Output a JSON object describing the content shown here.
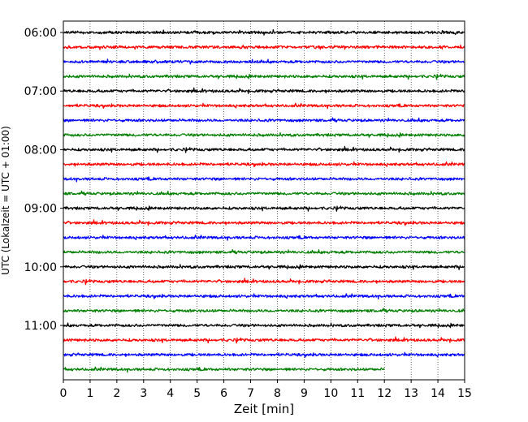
{
  "chart_data": {
    "type": "line",
    "title": "",
    "xlabel": "Zeit  [min]",
    "ylabel": "UTC (Lokalzeit = UTC + 01:00)",
    "xlim": [
      0,
      15
    ],
    "x_ticks": [
      "0",
      "1",
      "2",
      "3",
      "4",
      "5",
      "6",
      "7",
      "8",
      "9",
      "10",
      "11",
      "12",
      "13",
      "14",
      "15"
    ],
    "y_ticks": [
      "06:00",
      "07:00",
      "08:00",
      "09:00",
      "10:00",
      "11:00"
    ],
    "grid": "vertical dotted lines at each minute",
    "legend": "none",
    "trace_interval_min": 15,
    "trace_colors": [
      "#000000",
      "#ff0000",
      "#0000ff",
      "#007f00"
    ],
    "series": [
      {
        "start": "06:00",
        "color": "#000000",
        "end_minute": 15
      },
      {
        "start": "06:15",
        "color": "#ff0000",
        "end_minute": 15
      },
      {
        "start": "06:30",
        "color": "#0000ff",
        "end_minute": 15
      },
      {
        "start": "06:45",
        "color": "#007f00",
        "end_minute": 15
      },
      {
        "start": "07:00",
        "color": "#000000",
        "end_minute": 15
      },
      {
        "start": "07:15",
        "color": "#ff0000",
        "end_minute": 15
      },
      {
        "start": "07:30",
        "color": "#0000ff",
        "end_minute": 15
      },
      {
        "start": "07:45",
        "color": "#007f00",
        "end_minute": 15
      },
      {
        "start": "08:00",
        "color": "#000000",
        "end_minute": 15
      },
      {
        "start": "08:15",
        "color": "#ff0000",
        "end_minute": 15
      },
      {
        "start": "08:30",
        "color": "#0000ff",
        "end_minute": 15
      },
      {
        "start": "08:45",
        "color": "#007f00",
        "end_minute": 15
      },
      {
        "start": "09:00",
        "color": "#000000",
        "end_minute": 15
      },
      {
        "start": "09:15",
        "color": "#ff0000",
        "end_minute": 15
      },
      {
        "start": "09:30",
        "color": "#0000ff",
        "end_minute": 15
      },
      {
        "start": "09:45",
        "color": "#007f00",
        "end_minute": 15
      },
      {
        "start": "10:00",
        "color": "#000000",
        "end_minute": 15
      },
      {
        "start": "10:15",
        "color": "#ff0000",
        "end_minute": 15
      },
      {
        "start": "10:30",
        "color": "#0000ff",
        "end_minute": 15
      },
      {
        "start": "10:45",
        "color": "#007f00",
        "end_minute": 15
      },
      {
        "start": "11:00",
        "color": "#000000",
        "end_minute": 15
      },
      {
        "start": "11:15",
        "color": "#ff0000",
        "end_minute": 15
      },
      {
        "start": "11:30",
        "color": "#0000ff",
        "end_minute": 15
      },
      {
        "start": "11:45",
        "color": "#007f00",
        "end_minute": 12
      }
    ]
  }
}
